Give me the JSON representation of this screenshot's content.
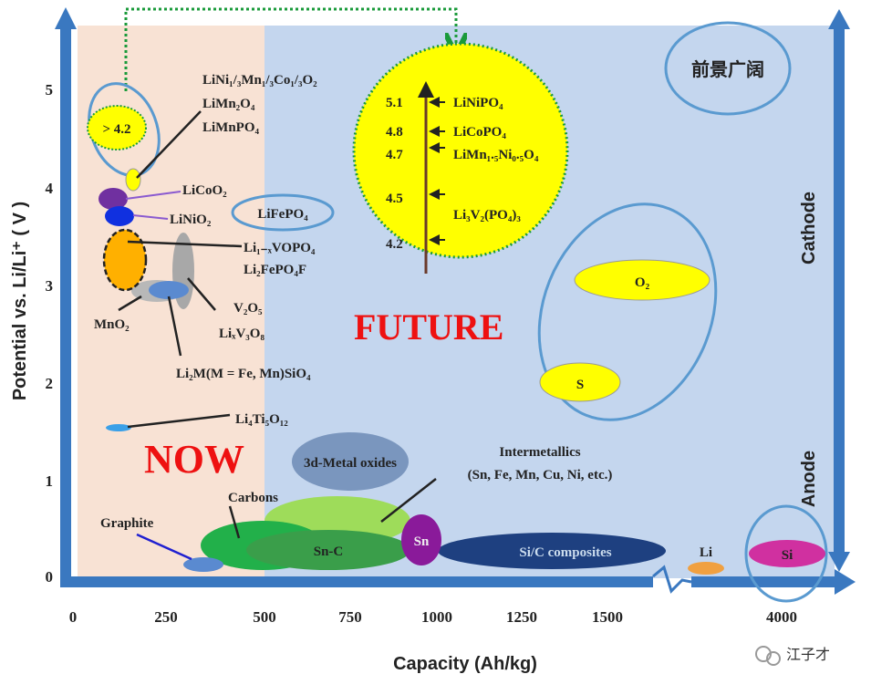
{
  "axes": {
    "ylabel": "Potential vs. Li/Li⁺ ( V )",
    "xlabel": "Capacity (Ah/kg)",
    "yticks": [
      "0",
      "1",
      "2",
      "3",
      "4",
      "5"
    ],
    "xticks": [
      "0",
      "250",
      "500",
      "750",
      "1000",
      "1250",
      "1500",
      "4000"
    ],
    "right_top": "Cathode",
    "right_bottom": "Anode"
  },
  "regions": {
    "now": "NOW",
    "future": "FUTURE",
    "prospect": "前景广阔"
  },
  "cathodes": {
    "gt42": "> 4.2",
    "nmc": "LiNi₁/₃Mn₁/₃Co₁/₃O₂",
    "lmo": "LiMn₂O₄",
    "lmp": "LiMnPO₄",
    "lco": "LiCoO₂",
    "lno": "LiNiO₂",
    "lfp": "LiFePO₄",
    "vopo": "Li₁₋ₓVOPO₄",
    "fepof": "Li₂FePO₄F",
    "v2o5": "V₂O₅",
    "lv3o8": "LiₓV₃O₈",
    "mno2": "MnO₂",
    "sio4": "Li₂M(M = Fe, Mn)SiO₄",
    "lto": "Li₄Ti₅O₁₂"
  },
  "future_items": [
    {
      "v": "5.1",
      "name": "LiNiPO₄"
    },
    {
      "v": "4.8",
      "name": "LiCoPO₄"
    },
    {
      "v": "4.7",
      "name": "LiMn₁.₅Ni₀.₅O₄"
    },
    {
      "v": "4.5",
      "name": "Li₃V₂(PO₄)₃"
    },
    {
      "v": "4.2",
      "name": ""
    }
  ],
  "anodes": {
    "o2": "O₂",
    "s": "S",
    "metal_oxides": "3d-Metal oxides",
    "intermetallics": "Intermetallics",
    "intermetallics_sub": "(Sn, Fe, Mn, Cu, Ni, etc.)",
    "carbons": "Carbons",
    "graphite": "Graphite",
    "snc": "Sn-C",
    "sn": "Sn",
    "sic": "Si/C composites",
    "li": "Li",
    "si": "Si"
  },
  "watermark": "江子才",
  "colors": {
    "peach": "#f8e2d4",
    "blue": "#c4d6ee",
    "yellow": "#ffff00",
    "axis": "#3a78c0",
    "red": "#ee1111"
  }
}
